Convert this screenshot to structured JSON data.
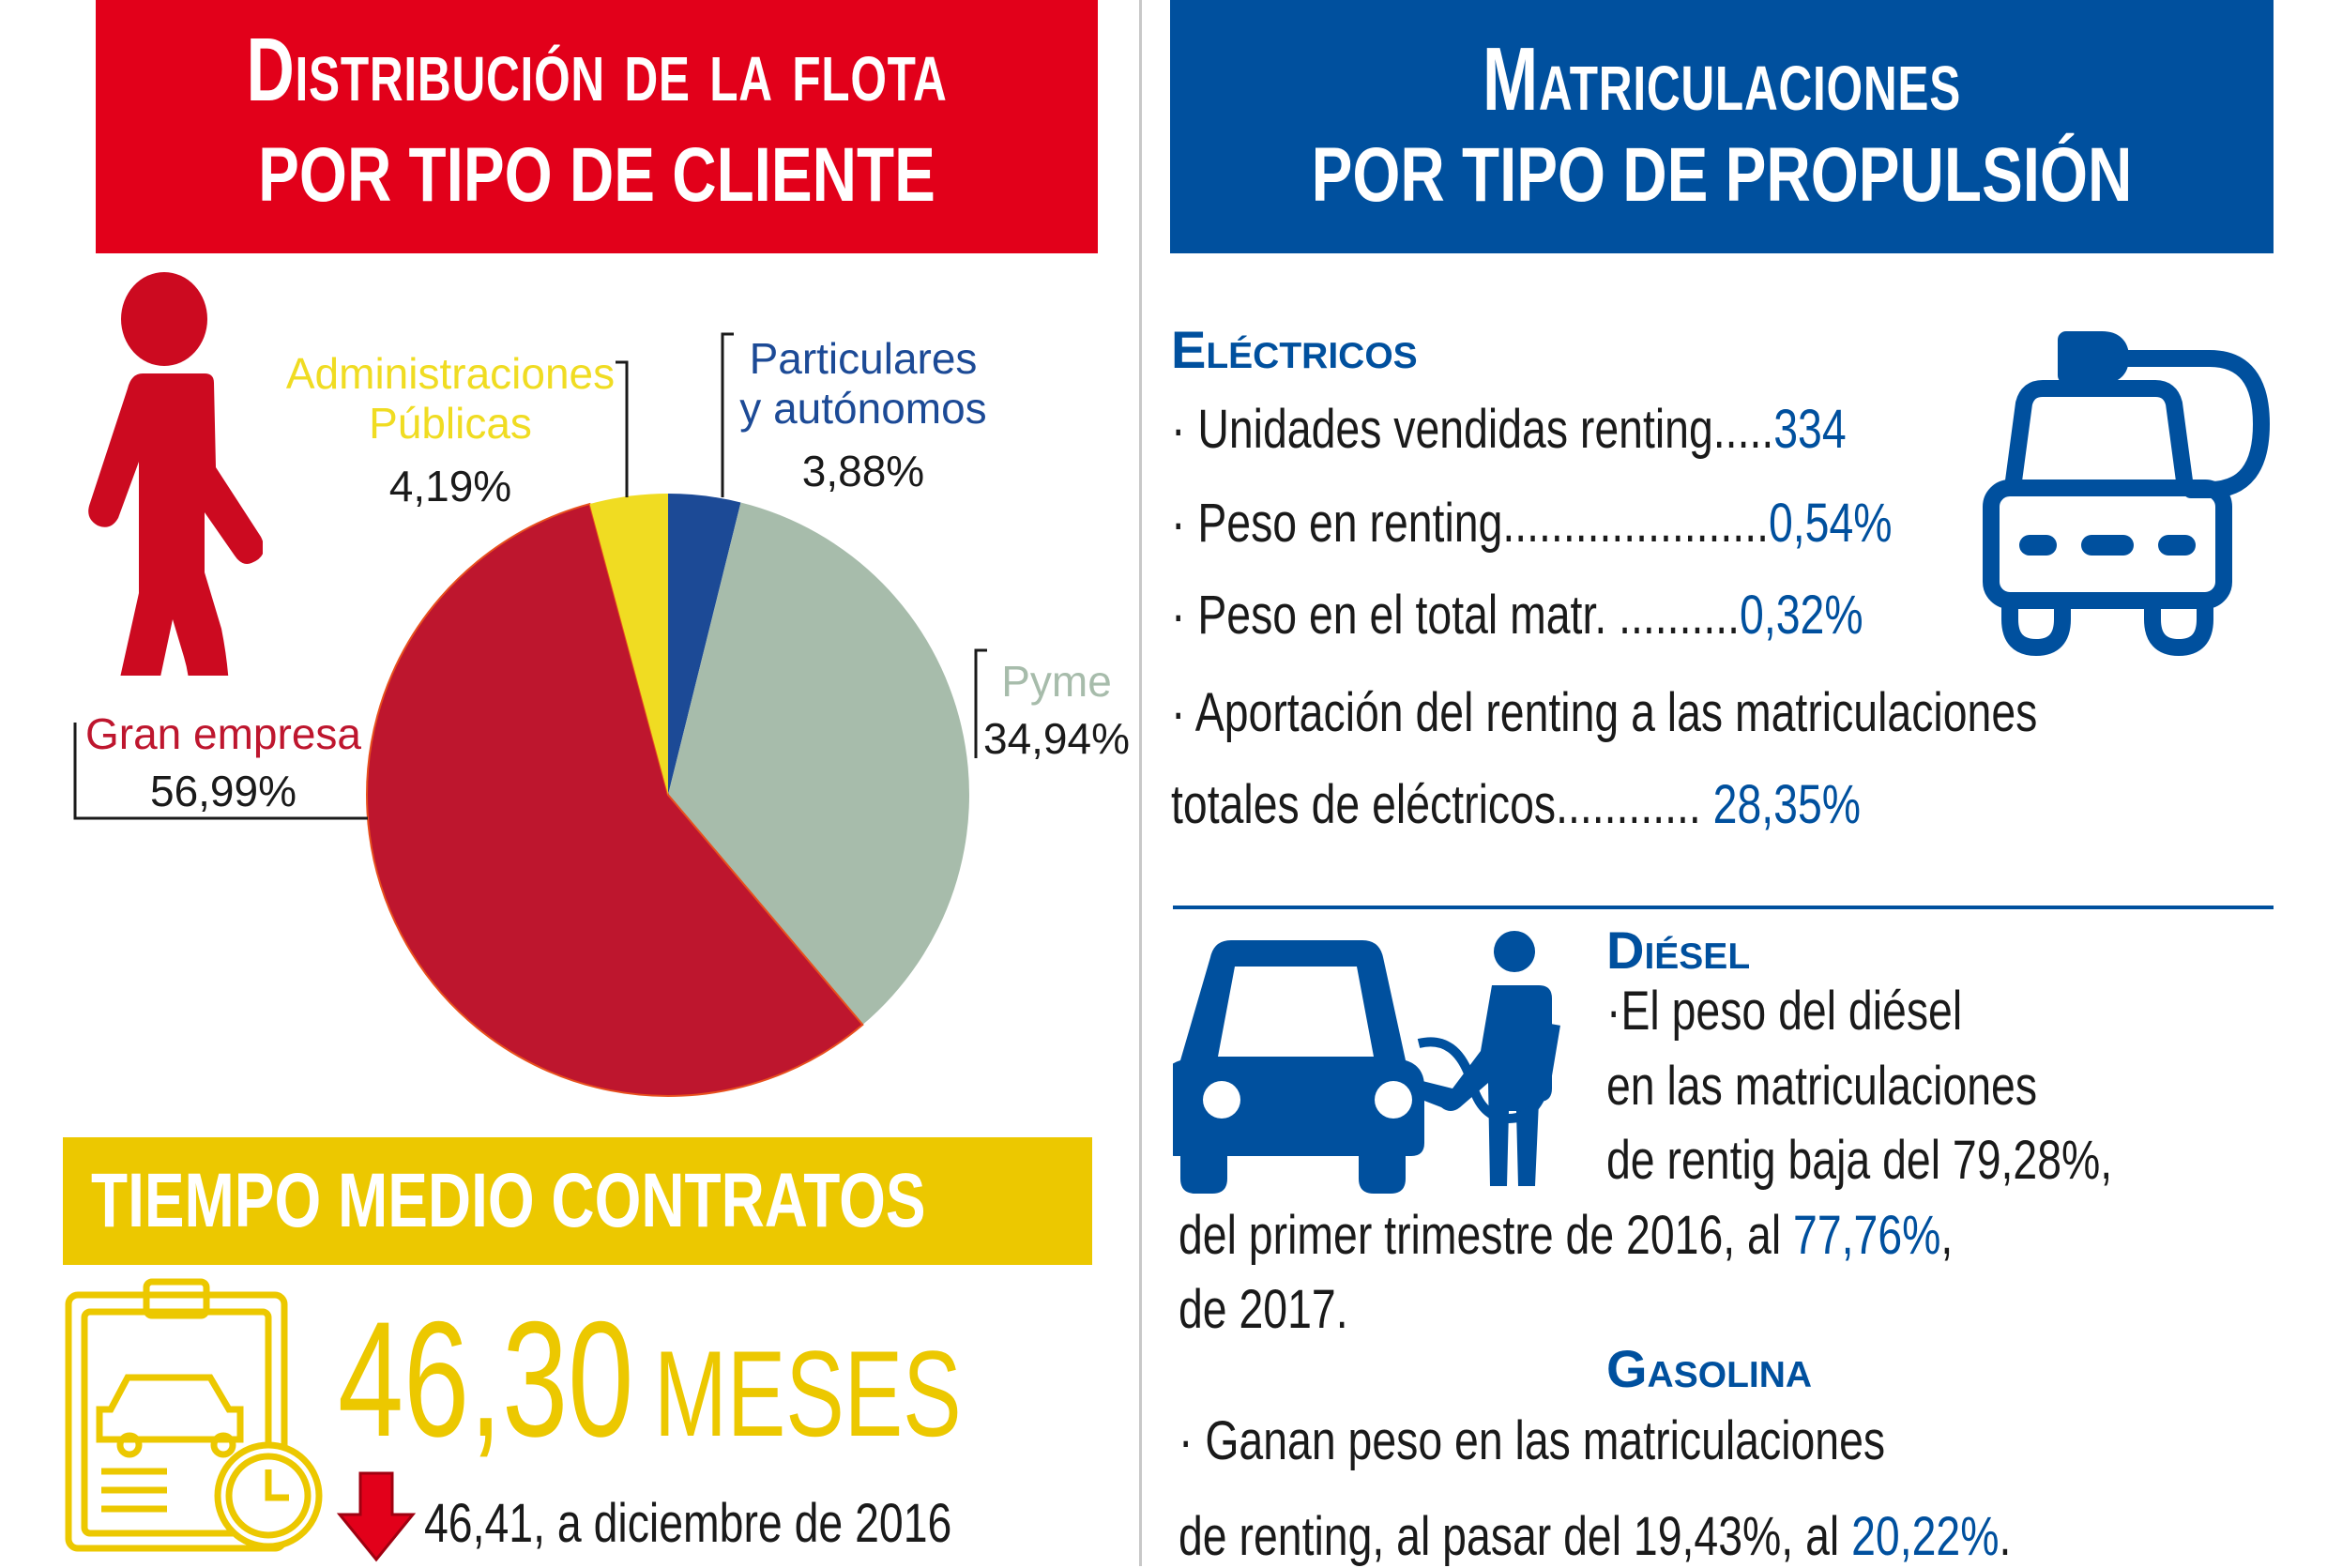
{
  "left": {
    "title_line1": "Distribución de la flota",
    "title_line2": "POR TIPO DE CLIENTE",
    "band_title": "TIEMPO MEDIO CONTRATOS",
    "avg_value": "46,30",
    "avg_unit": "MESES",
    "previous": "46,41, a diciembre de 2016"
  },
  "chart_data": {
    "type": "pie",
    "title": "Distribución de la flota por tipo de cliente",
    "slices": [
      {
        "name": "Particulares y autónomos",
        "label_l1": "Particulares",
        "label_l2": "y autónomos",
        "value": 3.88,
        "value_label": "3,88%",
        "color": "#1c4a96"
      },
      {
        "name": "Pyme",
        "label_l1": "Pyme",
        "label_l2": "",
        "value": 34.94,
        "value_label": "34,94%",
        "color": "#a7bcab"
      },
      {
        "name": "Gran empresa",
        "label_l1": "Gran empresa",
        "label_l2": "",
        "value": 56.99,
        "value_label": "56,99%",
        "color": "#be162e"
      },
      {
        "name": "Administraciones Públicas",
        "label_l1": "Administraciones",
        "label_l2": "Públicas",
        "value": 4.19,
        "value_label": "4,19%",
        "color": "#f0dc22"
      }
    ],
    "start": "top",
    "direction": "clockwise"
  },
  "right": {
    "title_line1": "Matriculaciones",
    "title_line2": "POR TIPO DE PROPULSIÓN",
    "electricos": {
      "heading": "Eléctricos",
      "l1_text": "· Unidades vendidas renting.....",
      "l1_value": "334",
      "l2_text": "· Peso en renting......................",
      "l2_value": "0,54%",
      "l3_text": "· Peso en el total matr.  ..........",
      "l3_value": "0,32%",
      "l4_text": "· Aportación del renting a las matriculaciones",
      "l5_text": "totales de eléctricos............ ",
      "l5_value": "28,35%"
    },
    "diesel": {
      "heading": "Diésel",
      "l1": "·El peso del diésel",
      "l2": "en las matriculaciones",
      "l3": "de rentig baja del 79,28%,",
      "l4_text": "del primer trimestre de 2016, al ",
      "l4_value": "77,76%",
      "l4_tail": ",",
      "l5": "de 2017."
    },
    "gasolina": {
      "heading": "Gasolina",
      "l1": "· Ganan peso en las matriculaciones",
      "l2_text": "de renting, al pasar del 19,43%, al ",
      "l2_value": "20,22%",
      "l2_tail": "."
    }
  },
  "colors": {
    "red": "#e2001a",
    "blue": "#00509e",
    "yellow": "#ecc800"
  }
}
